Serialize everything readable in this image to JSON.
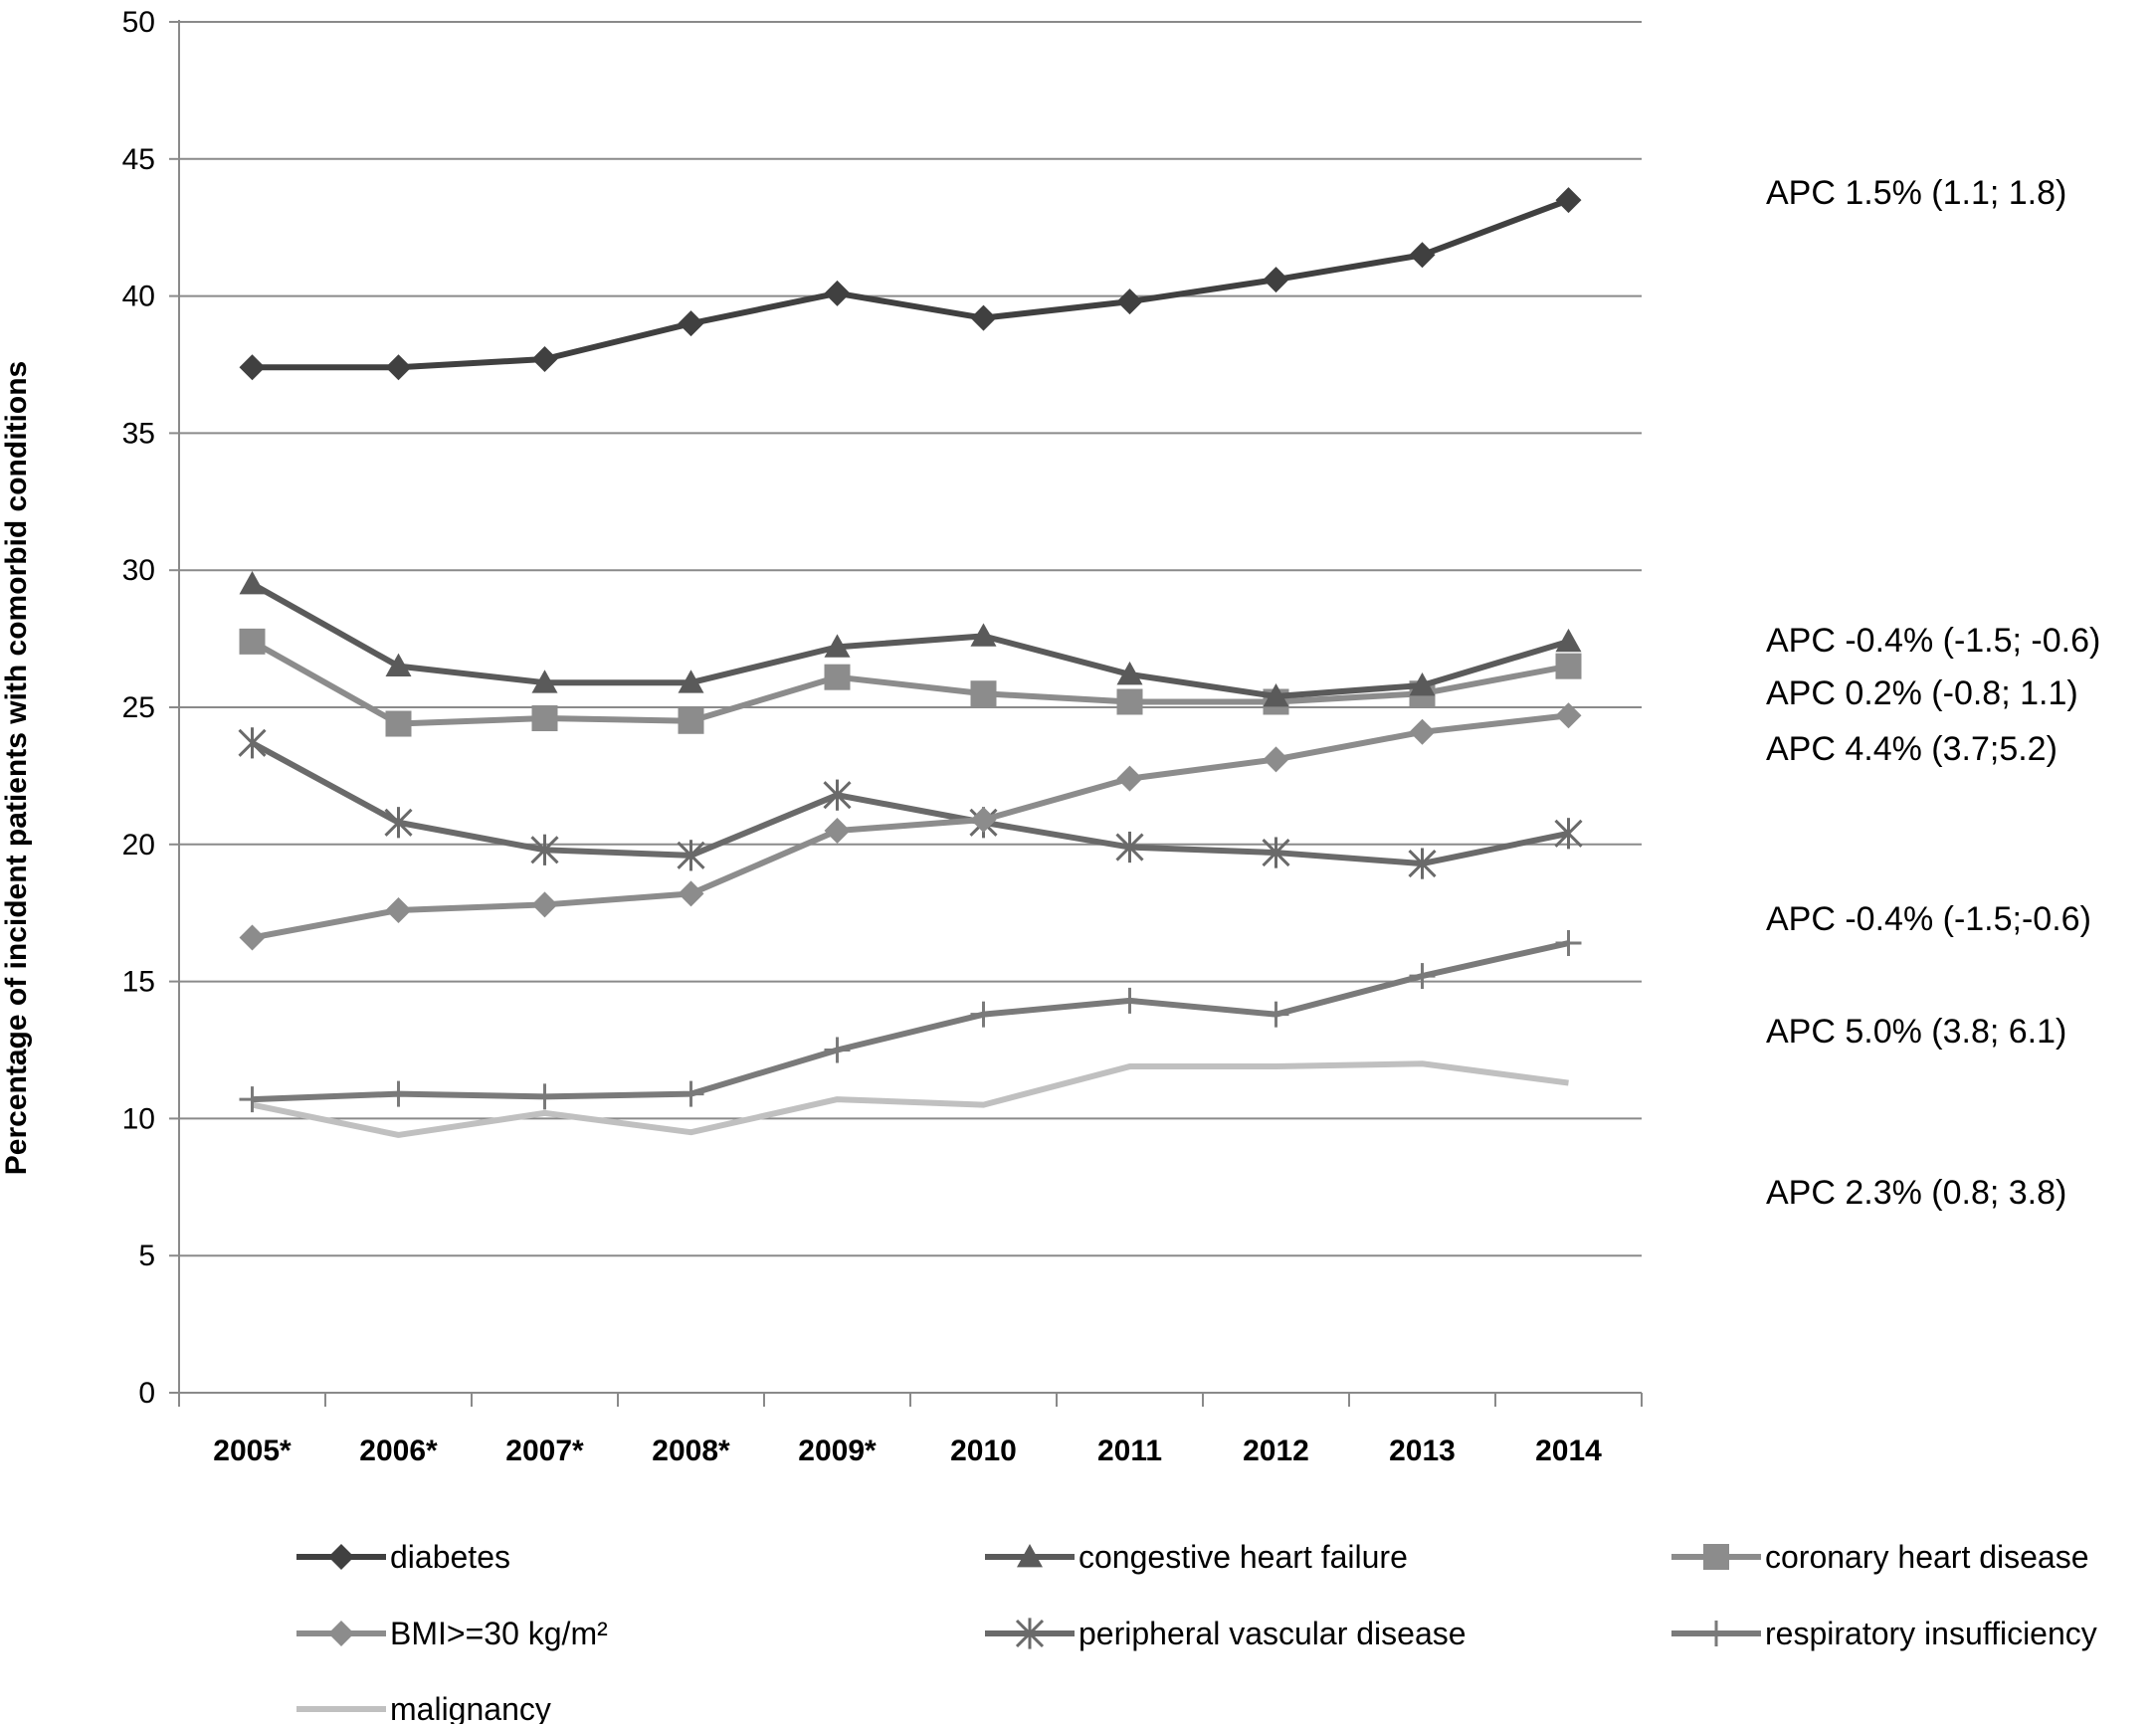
{
  "chart_data": {
    "type": "line",
    "title": "",
    "xlabel": "",
    "ylabel": "Percentage of incident patients with comorbid conditions",
    "ylim": [
      0,
      50
    ],
    "yticks": [
      0,
      5,
      10,
      15,
      20,
      25,
      30,
      35,
      40,
      45,
      50
    ],
    "grid": "horizontal",
    "legend_position": "bottom",
    "categories": [
      "2005*",
      "2006*",
      "2007*",
      "2008*",
      "2009*",
      "2010",
      "2011",
      "2012",
      "2013",
      "2014"
    ],
    "series": [
      {
        "name": "diabetes",
        "marker": "diamond",
        "color": "#404040",
        "values": [
          37.4,
          37.4,
          37.7,
          39.0,
          40.1,
          39.2,
          39.8,
          40.6,
          41.5,
          43.5
        ]
      },
      {
        "name": "congestive heart failure",
        "marker": "triangle",
        "color": "#5a5a5a",
        "values": [
          29.5,
          26.5,
          25.9,
          25.9,
          27.2,
          27.6,
          26.2,
          25.4,
          25.8,
          27.4
        ]
      },
      {
        "name": "coronary heart disease",
        "marker": "square",
        "color": "#8c8c8c",
        "values": [
          27.4,
          24.4,
          24.6,
          24.5,
          26.1,
          25.5,
          25.2,
          25.2,
          25.5,
          26.5
        ]
      },
      {
        "name": "BMI>=30 kg/m²",
        "marker": "diamond",
        "color": "#8c8c8c",
        "values": [
          16.6,
          17.6,
          17.8,
          18.2,
          20.5,
          20.9,
          22.4,
          23.1,
          24.1,
          24.7
        ]
      },
      {
        "name": "peripheral vascular disease",
        "marker": "star",
        "color": "#6a6a6a",
        "values": [
          23.7,
          20.8,
          19.8,
          19.6,
          21.8,
          20.8,
          19.9,
          19.7,
          19.3,
          20.4
        ]
      },
      {
        "name": "respiratory insufficiency",
        "marker": "plus",
        "color": "#7a7a7a",
        "values": [
          10.7,
          10.9,
          10.8,
          10.9,
          12.5,
          13.8,
          14.3,
          13.8,
          15.2,
          16.4
        ]
      },
      {
        "name": "malignancy",
        "marker": "none",
        "color": "#c0c0c0",
        "values": [
          10.5,
          9.4,
          10.2,
          9.5,
          10.7,
          10.5,
          11.9,
          11.9,
          12.0,
          11.3
        ]
      }
    ],
    "annotations": [
      {
        "text": "APC 1.5% (1.1; 1.8)"
      },
      {
        "text": "APC -0.4% (-1.5; -0.6)"
      },
      {
        "text": "APC 0.2% (-0.8; 1.1)"
      },
      {
        "text": "APC 4.4% (3.7;5.2)"
      },
      {
        "text": "APC -0.4% (-1.5;-0.6)"
      },
      {
        "text": "APC 5.0% (3.8; 6.1)"
      },
      {
        "text": "APC 2.3% (0.8; 3.8)"
      }
    ]
  }
}
